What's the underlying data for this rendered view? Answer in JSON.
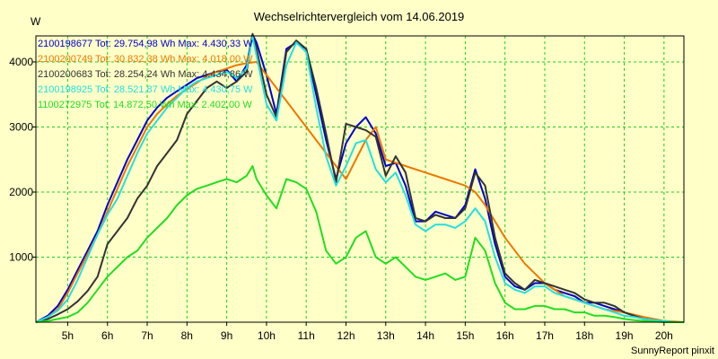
{
  "chart_data": {
    "type": "line",
    "title": "Wechselrichtervergleich vom 14.06.2019",
    "ylabel": "W",
    "xlabel": "",
    "footer": "SunnyReport pinxit",
    "xlim": [
      4.2,
      20.5
    ],
    "ylim": [
      0,
      4400
    ],
    "x_ticks": [
      {
        "v": 5,
        "label": "5h"
      },
      {
        "v": 6,
        "label": "6h"
      },
      {
        "v": 7,
        "label": "7h"
      },
      {
        "v": 8,
        "label": "8h"
      },
      {
        "v": 9,
        "label": "9h"
      },
      {
        "v": 10,
        "label": "10h"
      },
      {
        "v": 11,
        "label": "11h"
      },
      {
        "v": 12,
        "label": "12h"
      },
      {
        "v": 13,
        "label": "13h"
      },
      {
        "v": 14,
        "label": "14h"
      },
      {
        "v": 15,
        "label": "15h"
      },
      {
        "v": 16,
        "label": "16h"
      },
      {
        "v": 17,
        "label": "17h"
      },
      {
        "v": 18,
        "label": "18h"
      },
      {
        "v": 19,
        "label": "19h"
      },
      {
        "v": 20,
        "label": "20h"
      }
    ],
    "y_ticks": [
      {
        "v": 1000,
        "label": "1000"
      },
      {
        "v": 2000,
        "label": "2000"
      },
      {
        "v": 3000,
        "label": "3000"
      },
      {
        "v": 4000,
        "label": "4000"
      }
    ],
    "grid": true,
    "background": "#ffffc8",
    "grid_color": "#22cc22",
    "series": [
      {
        "name": "2100198677 Tot: 29.754,98 Wh Max: 4.430,33 W",
        "color": "#0000cc",
        "x": [
          4.2,
          4.5,
          4.75,
          5,
          5.25,
          5.5,
          5.75,
          6,
          6.25,
          6.5,
          6.75,
          7,
          7.25,
          7.5,
          7.75,
          8,
          8.25,
          8.5,
          8.75,
          9,
          9.25,
          9.5,
          9.65,
          9.75,
          10,
          10.25,
          10.5,
          10.75,
          11,
          11.25,
          11.5,
          11.75,
          12,
          12.25,
          12.5,
          12.75,
          13,
          13.25,
          13.5,
          13.75,
          14,
          14.25,
          14.5,
          14.75,
          15,
          15.25,
          15.5,
          15.75,
          16,
          16.25,
          16.5,
          16.75,
          17,
          17.25,
          17.5,
          17.75,
          18,
          18.25,
          18.5,
          18.75,
          19,
          19.25,
          19.5,
          19.75,
          20,
          20.25,
          20.5
        ],
        "y": [
          0,
          100,
          250,
          500,
          800,
          1100,
          1400,
          1800,
          2150,
          2500,
          2800,
          3100,
          3300,
          3450,
          3550,
          3650,
          3750,
          3800,
          3850,
          3880,
          3700,
          3950,
          4420,
          4300,
          3800,
          3200,
          4200,
          4300,
          4200,
          3500,
          2800,
          2200,
          2750,
          3000,
          3150,
          2900,
          2400,
          2450,
          2100,
          1550,
          1550,
          1700,
          1650,
          1600,
          1800,
          2350,
          1900,
          1200,
          700,
          550,
          500,
          600,
          600,
          500,
          450,
          400,
          300,
          300,
          250,
          200,
          150,
          100,
          50,
          30,
          20,
          0,
          0
        ]
      },
      {
        "name": "2100200749 Tot: 30.832,38 Wh Max: 4.018,00 W",
        "color": "#ee7700",
        "x": [
          4.2,
          4.5,
          4.75,
          5,
          5.25,
          5.5,
          5.75,
          6,
          6.25,
          6.5,
          6.75,
          7,
          7.25,
          7.5,
          7.75,
          8,
          8.25,
          8.5,
          8.75,
          9,
          9.25,
          9.5,
          9.75,
          10,
          10.5,
          11,
          11.5,
          11.75,
          12,
          12.5,
          12.75,
          13,
          13.5,
          14,
          14.5,
          15,
          15.25,
          15.5,
          16,
          16.5,
          17,
          17.5,
          18,
          18.5,
          19,
          19.5,
          20,
          20.5
        ],
        "y": [
          0,
          80,
          200,
          450,
          750,
          1050,
          1350,
          1700,
          2050,
          2400,
          2700,
          3000,
          3200,
          3350,
          3480,
          3580,
          3680,
          3780,
          3850,
          3900,
          3950,
          3980,
          4000,
          3800,
          3400,
          3000,
          2600,
          2400,
          2200,
          2800,
          3000,
          2500,
          2400,
          2300,
          2200,
          2100,
          2000,
          1800,
          1300,
          900,
          600,
          400,
          300,
          200,
          150,
          80,
          20,
          0
        ]
      },
      {
        "name": "2100200683 Tot: 28.254,24 Wh Max: 4.434,86 W",
        "color": "#333333",
        "x": [
          4.2,
          4.5,
          4.75,
          5,
          5.25,
          5.5,
          5.75,
          6,
          6.25,
          6.5,
          6.75,
          7,
          7.25,
          7.5,
          7.75,
          8,
          8.25,
          8.5,
          8.75,
          9,
          9.25,
          9.5,
          9.65,
          9.75,
          10,
          10.25,
          10.5,
          10.75,
          11,
          11.25,
          11.5,
          11.75,
          12,
          12.25,
          12.5,
          12.75,
          13,
          13.25,
          13.5,
          13.75,
          14,
          14.25,
          14.5,
          14.75,
          15,
          15.25,
          15.5,
          15.75,
          16,
          16.25,
          16.5,
          16.75,
          17,
          17.25,
          17.5,
          17.75,
          18,
          18.25,
          18.5,
          18.75,
          19,
          19.25,
          19.5,
          19.75,
          20,
          20.25,
          20.5
        ],
        "y": [
          0,
          50,
          120,
          200,
          320,
          480,
          700,
          1200,
          1400,
          1600,
          1900,
          2100,
          2400,
          2600,
          2800,
          3200,
          3400,
          3600,
          3700,
          3600,
          3700,
          3850,
          4430,
          4200,
          3500,
          3150,
          4150,
          4330,
          4200,
          3600,
          2900,
          2150,
          3050,
          3000,
          2950,
          2850,
          2250,
          2550,
          2300,
          1600,
          1550,
          1650,
          1600,
          1600,
          1750,
          2300,
          2100,
          1300,
          750,
          600,
          500,
          650,
          600,
          550,
          500,
          450,
          350,
          300,
          300,
          250,
          150,
          100,
          50,
          30,
          20,
          0,
          0
        ]
      },
      {
        "name": "2100198925 Tot: 28.521,87 Wh Max: 4.430,75 W",
        "color": "#22e0e0",
        "x": [
          4.2,
          4.5,
          4.75,
          5,
          5.25,
          5.5,
          5.75,
          6,
          6.25,
          6.5,
          6.75,
          7,
          7.25,
          7.5,
          7.75,
          8,
          8.25,
          8.5,
          8.75,
          9,
          9.25,
          9.5,
          9.65,
          9.75,
          10,
          10.25,
          10.5,
          10.75,
          11,
          11.25,
          11.5,
          11.75,
          12,
          12.25,
          12.5,
          12.75,
          13,
          13.25,
          13.5,
          13.75,
          14,
          14.25,
          14.5,
          14.75,
          15,
          15.25,
          15.5,
          15.75,
          16,
          16.25,
          16.5,
          16.75,
          17,
          17.25,
          17.5,
          17.75,
          18,
          18.25,
          18.5,
          18.75,
          19,
          19.25,
          19.5,
          19.75,
          20,
          20.25,
          20.5
        ],
        "y": [
          0,
          80,
          180,
          350,
          650,
          1000,
          1350,
          1650,
          1900,
          2250,
          2600,
          2900,
          3100,
          3300,
          3450,
          3600,
          3700,
          3750,
          3800,
          3850,
          3750,
          3900,
          4380,
          4100,
          3350,
          3100,
          3950,
          4300,
          4150,
          3300,
          2550,
          2100,
          2400,
          2750,
          2800,
          2350,
          2150,
          2300,
          1950,
          1500,
          1400,
          1500,
          1500,
          1450,
          1550,
          1750,
          1550,
          1000,
          600,
          500,
          450,
          550,
          550,
          450,
          400,
          350,
          300,
          250,
          200,
          150,
          100,
          80,
          50,
          30,
          20,
          0,
          0
        ]
      },
      {
        "name": "1100272975 Tot: 14.872,50 Wh Max: 2.402,00 W",
        "color": "#22dd22",
        "x": [
          4.2,
          4.5,
          4.75,
          5,
          5.25,
          5.5,
          5.75,
          6,
          6.25,
          6.5,
          6.75,
          7,
          7.25,
          7.5,
          7.75,
          8,
          8.25,
          8.5,
          8.75,
          9,
          9.25,
          9.5,
          9.65,
          9.75,
          10,
          10.25,
          10.5,
          10.75,
          11,
          11.25,
          11.5,
          11.75,
          12,
          12.25,
          12.5,
          12.75,
          13,
          13.25,
          13.5,
          13.75,
          14,
          14.25,
          14.5,
          14.75,
          15,
          15.25,
          15.5,
          15.75,
          16,
          16.25,
          16.5,
          16.75,
          17,
          17.25,
          17.5,
          17.75,
          18,
          18.25,
          18.5,
          18.75,
          19,
          19.25,
          19.5,
          19.75,
          20,
          20.25,
          20.5
        ],
        "y": [
          0,
          20,
          50,
          80,
          150,
          300,
          500,
          700,
          850,
          1000,
          1100,
          1300,
          1450,
          1600,
          1800,
          1950,
          2050,
          2100,
          2150,
          2200,
          2150,
          2250,
          2400,
          2200,
          1950,
          1750,
          2200,
          2150,
          2050,
          1700,
          1100,
          900,
          1000,
          1300,
          1400,
          1000,
          900,
          1000,
          850,
          700,
          650,
          700,
          750,
          650,
          700,
          1300,
          1100,
          600,
          300,
          200,
          200,
          250,
          250,
          200,
          200,
          150,
          150,
          100,
          100,
          80,
          50,
          30,
          20,
          10,
          0,
          0,
          0
        ]
      }
    ]
  }
}
